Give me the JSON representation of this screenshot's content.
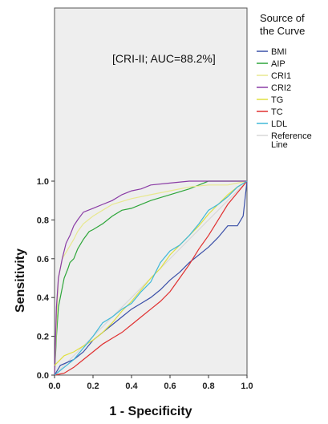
{
  "chart_data": {
    "type": "line",
    "title": "",
    "xlabel": "1 - Specificity",
    "ylabel": "Sensitivity",
    "xlim": [
      0,
      1
    ],
    "ylim": [
      0,
      1
    ],
    "x_ticks": [
      "0.0",
      "0.2",
      "0.4",
      "0.6",
      "0.8",
      "1.0"
    ],
    "y_ticks": [
      "0.0",
      "0.2",
      "0.4",
      "0.6",
      "0.8",
      "1.0"
    ],
    "annotation": "[CRI-II; AUC=88.2%]",
    "legend": {
      "title": "Source of the Curve",
      "title_lines": [
        "Source of",
        "the Curve"
      ],
      "placement": "right"
    },
    "series": [
      {
        "name": "BMI",
        "color": "#3b50a8",
        "x": [
          0,
          0.03,
          0.1,
          0.15,
          0.2,
          0.25,
          0.3,
          0.35,
          0.4,
          0.45,
          0.5,
          0.55,
          0.6,
          0.65,
          0.7,
          0.75,
          0.8,
          0.85,
          0.9,
          0.95,
          0.98,
          1
        ],
        "y": [
          0,
          0.05,
          0.08,
          0.12,
          0.18,
          0.22,
          0.26,
          0.3,
          0.34,
          0.37,
          0.4,
          0.44,
          0.49,
          0.53,
          0.58,
          0.62,
          0.66,
          0.71,
          0.77,
          0.77,
          0.82,
          1
        ]
      },
      {
        "name": "AIP",
        "color": "#2ea63a",
        "x": [
          0,
          0.01,
          0.02,
          0.05,
          0.07,
          0.08,
          0.1,
          0.12,
          0.15,
          0.18,
          0.2,
          0.25,
          0.3,
          0.35,
          0.4,
          0.5,
          0.6,
          0.7,
          0.8,
          1
        ],
        "y": [
          0,
          0.2,
          0.35,
          0.5,
          0.55,
          0.58,
          0.6,
          0.65,
          0.7,
          0.74,
          0.75,
          0.78,
          0.82,
          0.85,
          0.86,
          0.9,
          0.93,
          0.96,
          1,
          1
        ]
      },
      {
        "name": "CRI1",
        "color": "#e8e890",
        "x": [
          0,
          0.02,
          0.04,
          0.07,
          0.1,
          0.12,
          0.15,
          0.2,
          0.25,
          0.3,
          0.4,
          0.5,
          0.6,
          0.7,
          0.8,
          0.9,
          1
        ],
        "y": [
          0,
          0.5,
          0.6,
          0.65,
          0.7,
          0.74,
          0.78,
          0.82,
          0.85,
          0.88,
          0.91,
          0.93,
          0.95,
          0.97,
          0.98,
          0.98,
          1
        ]
      },
      {
        "name": "CRI2",
        "color": "#8a3ca5",
        "x": [
          0,
          0.01,
          0.02,
          0.04,
          0.06,
          0.08,
          0.1,
          0.12,
          0.15,
          0.2,
          0.25,
          0.3,
          0.35,
          0.4,
          0.45,
          0.5,
          0.6,
          0.7,
          0.8,
          1
        ],
        "y": [
          0,
          0.35,
          0.5,
          0.6,
          0.68,
          0.72,
          0.77,
          0.8,
          0.84,
          0.86,
          0.88,
          0.9,
          0.93,
          0.95,
          0.96,
          0.98,
          0.99,
          1,
          1,
          1
        ]
      },
      {
        "name": "TG",
        "color": "#e0e040",
        "x": [
          0,
          0.05,
          0.1,
          0.15,
          0.2,
          0.25,
          0.3,
          0.35,
          0.4,
          0.45,
          0.5,
          0.55,
          0.6,
          0.65,
          0.7,
          0.75,
          0.8,
          0.85,
          0.9,
          0.95,
          1
        ],
        "y": [
          0.05,
          0.1,
          0.12,
          0.15,
          0.18,
          0.22,
          0.27,
          0.33,
          0.38,
          0.44,
          0.5,
          0.55,
          0.62,
          0.67,
          0.72,
          0.77,
          0.83,
          0.88,
          0.93,
          0.97,
          1
        ]
      },
      {
        "name": "TC",
        "color": "#e03030",
        "x": [
          0,
          0.05,
          0.1,
          0.15,
          0.2,
          0.25,
          0.3,
          0.35,
          0.4,
          0.45,
          0.5,
          0.55,
          0.6,
          0.65,
          0.7,
          0.75,
          0.8,
          0.85,
          0.9,
          0.95,
          1
        ],
        "y": [
          0,
          0.01,
          0.04,
          0.08,
          0.12,
          0.16,
          0.19,
          0.22,
          0.26,
          0.3,
          0.34,
          0.38,
          0.43,
          0.5,
          0.57,
          0.65,
          0.72,
          0.8,
          0.88,
          0.94,
          1
        ]
      },
      {
        "name": "LDL",
        "color": "#40b8d8",
        "x": [
          0,
          0.05,
          0.1,
          0.15,
          0.2,
          0.25,
          0.3,
          0.35,
          0.4,
          0.45,
          0.5,
          0.55,
          0.6,
          0.65,
          0.7,
          0.75,
          0.8,
          0.85,
          0.9,
          0.95,
          1
        ],
        "y": [
          0,
          0.04,
          0.08,
          0.14,
          0.2,
          0.27,
          0.3,
          0.34,
          0.37,
          0.43,
          0.48,
          0.58,
          0.64,
          0.67,
          0.72,
          0.78,
          0.85,
          0.88,
          0.92,
          0.97,
          1
        ]
      },
      {
        "name": "Reference Line",
        "label_lines": [
          "Reference",
          "Line"
        ],
        "color": "#d8d8d8",
        "x": [
          0,
          1
        ],
        "y": [
          0,
          1
        ]
      }
    ]
  }
}
